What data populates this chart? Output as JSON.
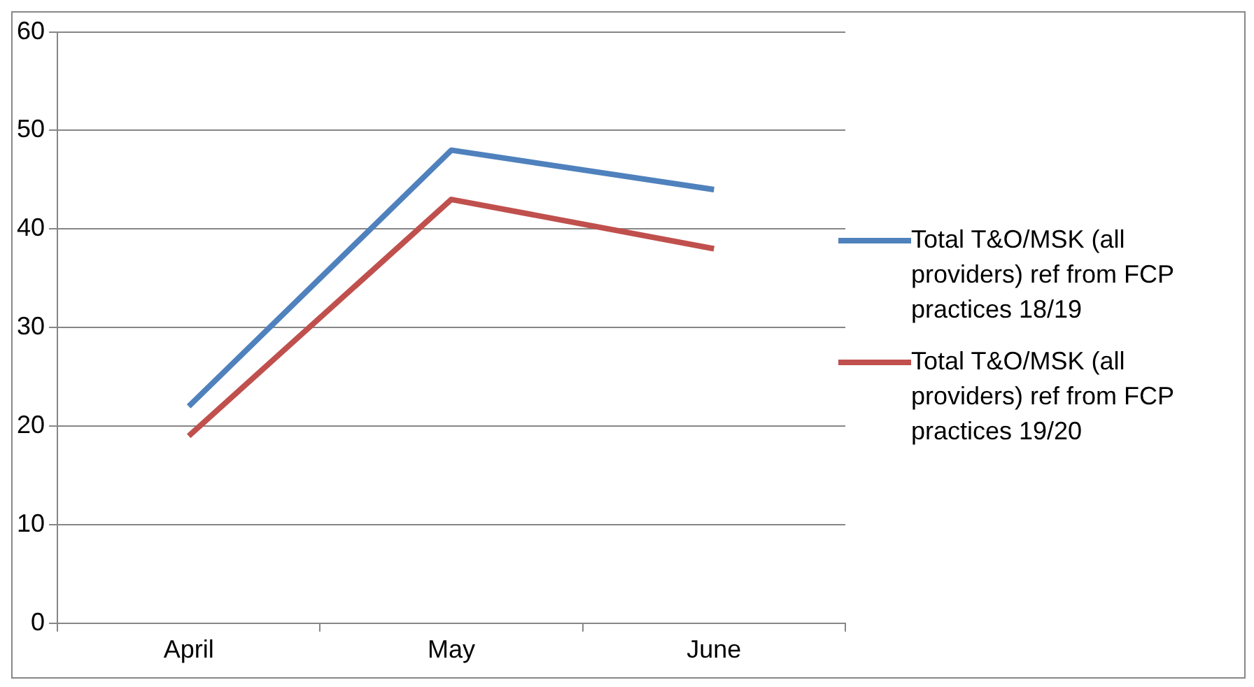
{
  "chart_data": {
    "type": "line",
    "categories": [
      "April",
      "May",
      "June"
    ],
    "series": [
      {
        "name": "Total T&O/MSK (all providers) ref from FCP practices 18/19",
        "color": "#4f81bd",
        "values": [
          22,
          48,
          44
        ]
      },
      {
        "name": "Total T&O/MSK (all providers) ref from FCP practices 19/20",
        "color": "#c0504d",
        "values": [
          19,
          43,
          38
        ]
      }
    ],
    "ylim": [
      0,
      60
    ],
    "yticks": [
      0,
      10,
      20,
      30,
      40,
      50,
      60
    ],
    "grid": "y",
    "legend": "right",
    "marker": "none",
    "line_style": "solid"
  }
}
